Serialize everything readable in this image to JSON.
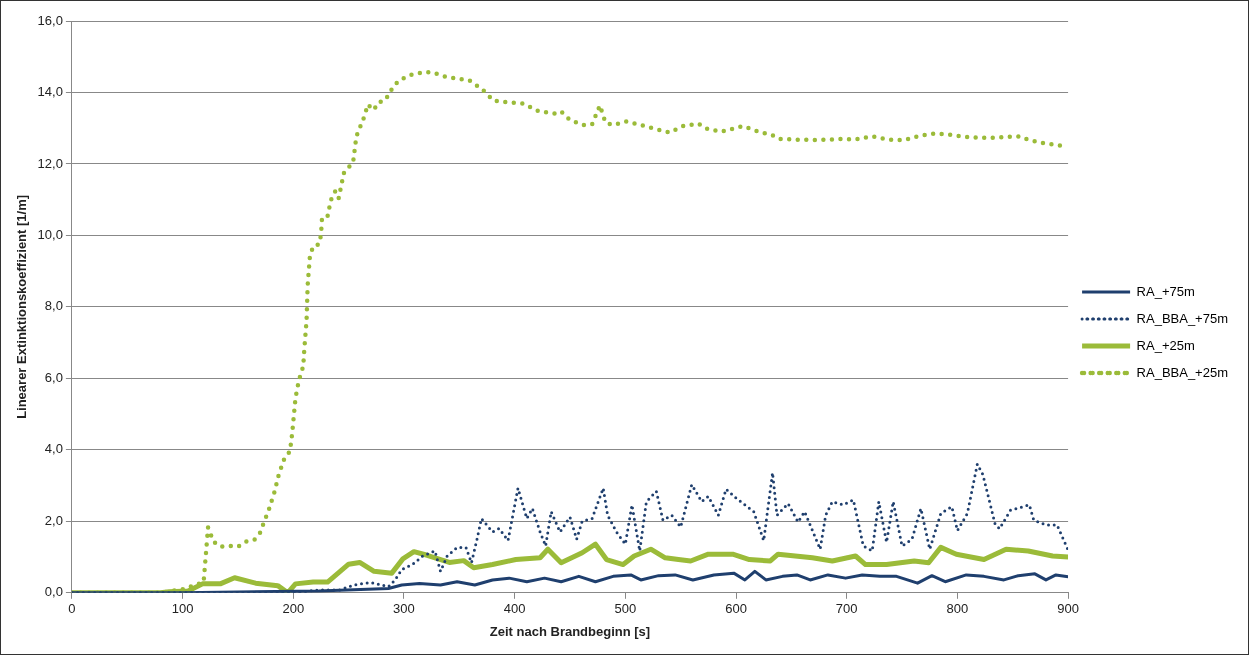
{
  "chart_data": {
    "type": "line",
    "xlabel": "Zeit nach Brandbeginn [s]",
    "ylabel": "Linearer Extinktionskoeffizient [1/m]",
    "xlim": [
      0,
      900
    ],
    "xticks": [
      0,
      100,
      200,
      300,
      400,
      500,
      600,
      700,
      800,
      900
    ],
    "ylim": [
      0,
      16
    ],
    "yticks": [
      {
        "value": 0,
        "label": "0,0"
      },
      {
        "value": 2,
        "label": "2,0"
      },
      {
        "value": 4,
        "label": "4,0"
      },
      {
        "value": 6,
        "label": "6,0"
      },
      {
        "value": 8,
        "label": "8,0"
      },
      {
        "value": 10,
        "label": "10,0"
      },
      {
        "value": 12,
        "label": "12,0"
      },
      {
        "value": 14,
        "label": "14,0"
      },
      {
        "value": 16,
        "label": "16,0"
      }
    ],
    "grid": "y",
    "legend": "right",
    "marker": "none",
    "series": [
      {
        "name": "RA_+75m",
        "color": "#1f3f6e",
        "line_style": "solid",
        "x": [
          0,
          100,
          150,
          223,
          286,
          298,
          314,
          333,
          348,
          364,
          380,
          395,
          411,
          427,
          442,
          458,
          473,
          489,
          505,
          514,
          530,
          545,
          561,
          580,
          598,
          608,
          617,
          627,
          642,
          655,
          667,
          683,
          699,
          714,
          730,
          745,
          764,
          777,
          789,
          808,
          824,
          842,
          855,
          870,
          880,
          889,
          900
        ],
        "values": [
          0,
          0,
          0.02,
          0.05,
          0.12,
          0.22,
          0.26,
          0.22,
          0.31,
          0.22,
          0.36,
          0.41,
          0.31,
          0.41,
          0.31,
          0.46,
          0.31,
          0.46,
          0.5,
          0.36,
          0.48,
          0.5,
          0.36,
          0.5,
          0.55,
          0.36,
          0.6,
          0.36,
          0.46,
          0.5,
          0.36,
          0.5,
          0.41,
          0.5,
          0.46,
          0.46,
          0.27,
          0.48,
          0.31,
          0.5,
          0.46,
          0.36,
          0.48,
          0.53,
          0.36,
          0.5,
          0.45
        ]
      },
      {
        "name": "RA_BBA_+75m",
        "color": "#1f3f6e",
        "line_style": "dotted",
        "x": [
          0,
          200,
          223,
          242,
          255,
          270,
          286,
          292,
          298,
          308,
          317,
          328,
          333,
          339,
          348,
          356,
          361,
          366,
          370,
          380,
          386,
          394,
          403,
          411,
          416,
          423,
          428,
          433,
          441,
          450,
          456,
          461,
          470,
          480,
          484,
          492,
          500,
          506,
          513,
          519,
          528,
          534,
          542,
          550,
          560,
          569,
          575,
          584,
          591,
          600,
          616,
          625,
          633,
          637,
          647,
          656,
          662,
          676,
          681,
          687,
          697,
          706,
          715,
          723,
          729,
          736,
          742,
          750,
          759,
          767,
          775,
          785,
          795,
          800,
          809,
          818,
          823,
          834,
          838,
          848,
          865,
          869,
          880,
          890,
          900
        ],
        "values": [
          0,
          0,
          0.08,
          0.08,
          0.22,
          0.29,
          0.17,
          0.36,
          0.65,
          0.8,
          1.03,
          1.17,
          0.6,
          1.03,
          1.27,
          1.27,
          0.84,
          1.5,
          2.08,
          1.7,
          1.8,
          1.46,
          2.93,
          2.08,
          2.36,
          1.7,
          1.31,
          2.27,
          1.7,
          2.12,
          1.5,
          2.0,
          2.08,
          2.93,
          2.17,
          1.7,
          1.36,
          2.46,
          1.17,
          2.55,
          2.84,
          2.03,
          2.17,
          1.84,
          3.03,
          2.55,
          2.7,
          2.17,
          2.9,
          2.65,
          2.27,
          1.46,
          3.36,
          2.17,
          2.5,
          1.98,
          2.27,
          1.22,
          2.17,
          2.55,
          2.46,
          2.6,
          1.31,
          1.17,
          2.55,
          1.41,
          2.55,
          1.31,
          1.5,
          2.36,
          1.22,
          2.22,
          2.41,
          1.74,
          2.22,
          3.6,
          3.31,
          1.93,
          1.79,
          2.31,
          2.46,
          2.03,
          1.9,
          1.9,
          1.2
        ]
      },
      {
        "name": "RA_+25m",
        "color": "#9bbb39",
        "line_style": "solid",
        "x": [
          0,
          80,
          88,
          105,
          118,
          134,
          147,
          166,
          186,
          195,
          202,
          218,
          231,
          250,
          260,
          273,
          289,
          299,
          309,
          321,
          331,
          341,
          354,
          363,
          380,
          401,
          423,
          430,
          442,
          461,
          473,
          483,
          498,
          508,
          523,
          536,
          548,
          559,
          575,
          597,
          612,
          631,
          638,
          669,
          687,
          708,
          717,
          736,
          761,
          774,
          785,
          799,
          824,
          844,
          864,
          886,
          900
        ],
        "values": [
          0,
          0,
          0.03,
          0.05,
          0.25,
          0.25,
          0.42,
          0.27,
          0.2,
          0.0,
          0.25,
          0.3,
          0.3,
          0.8,
          0.85,
          0.6,
          0.55,
          0.95,
          1.15,
          1.05,
          0.95,
          0.85,
          0.9,
          0.7,
          0.79,
          0.93,
          0.98,
          1.22,
          0.84,
          1.12,
          1.36,
          0.93,
          0.79,
          1.03,
          1.22,
          0.98,
          0.93,
          0.89,
          1.08,
          1.08,
          0.93,
          0.89,
          1.08,
          0.98,
          0.89,
          1.03,
          0.79,
          0.79,
          0.89,
          0.84,
          1.27,
          1.08,
          0.93,
          1.22,
          1.17,
          1.03,
          1.0
        ]
      },
      {
        "name": "RA_BBA_+25m",
        "color": "#9bbb39",
        "line_style": "dotted",
        "x": [
          0,
          80,
          100,
          119,
          123,
          128,
          134,
          142,
          150,
          157,
          165,
          170,
          173,
          178,
          183,
          187,
          192,
          197,
          199,
          202,
          205,
          209,
          210,
          212,
          213,
          215,
          218,
          223,
          225,
          226,
          231,
          234,
          238,
          241,
          244,
          246,
          254,
          257,
          265,
          267,
          273,
          276,
          283,
          291,
          297,
          304,
          307,
          319,
          327,
          335,
          346,
          359,
          371,
          381,
          395,
          408,
          422,
          437,
          442,
          450,
          462,
          470,
          477,
          482,
          489,
          501,
          514,
          527,
          540,
          552,
          566,
          572,
          586,
          599,
          606,
          619,
          633,
          639,
          656,
          676,
          696,
          707,
          723,
          737,
          752,
          767,
          780,
          790,
          807,
          822,
          837,
          850,
          857,
          864,
          876,
          897
        ],
        "values": [
          0,
          0,
          0.1,
          0.3,
          1.83,
          1.43,
          1.29,
          1.31,
          1.29,
          1.43,
          1.49,
          1.68,
          1.93,
          2.33,
          2.82,
          3.32,
          3.76,
          3.96,
          4.46,
          5.45,
          5.94,
          6.34,
          6.83,
          7.62,
          8.61,
          9.41,
          9.7,
          9.75,
          10.0,
          10.5,
          10.54,
          10.99,
          11.24,
          11.04,
          11.49,
          11.78,
          12.03,
          12.77,
          13.39,
          13.66,
          13.51,
          13.71,
          13.78,
          14.2,
          14.36,
          14.46,
          14.5,
          14.57,
          14.55,
          14.46,
          14.4,
          14.34,
          14.08,
          13.77,
          13.72,
          13.69,
          13.47,
          13.41,
          13.47,
          13.23,
          13.09,
          13.11,
          13.64,
          13.16,
          13.09,
          13.19,
          13.09,
          12.98,
          12.88,
          13.06,
          13.13,
          13.0,
          12.9,
          13.0,
          13.06,
          12.92,
          12.8,
          12.7,
          12.68,
          12.67,
          12.7,
          12.68,
          12.77,
          12.68,
          12.67,
          12.8,
          12.85,
          12.83,
          12.76,
          12.73,
          12.74,
          12.77,
          12.77,
          12.68,
          12.59,
          12.5
        ]
      }
    ]
  }
}
